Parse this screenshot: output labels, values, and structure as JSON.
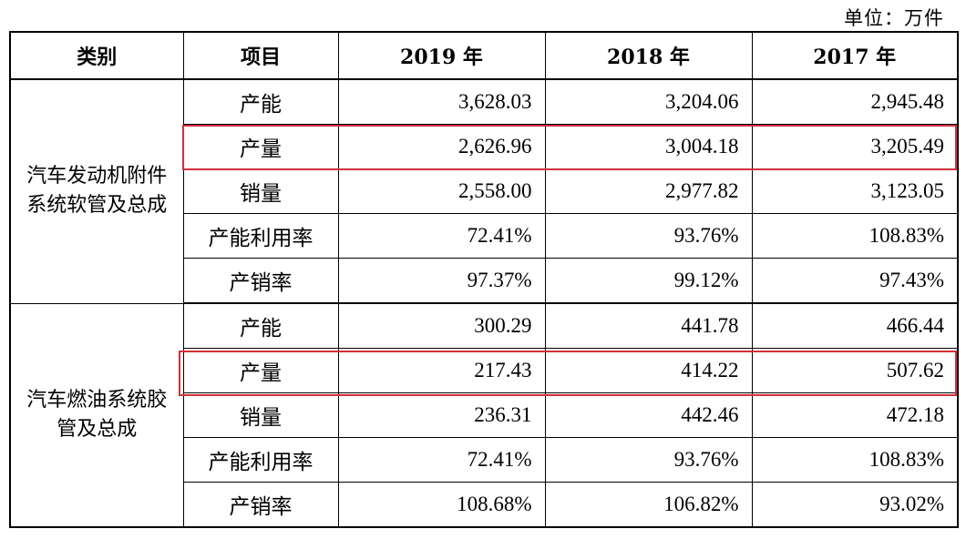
{
  "unit_label": "单位：万件",
  "headers": [
    "类别",
    "项目",
    "2019 年",
    "2018 年",
    "2017 年"
  ],
  "groups": [
    {
      "category": "汽车发动机附件系统软管及总成",
      "rows": [
        {
          "item": "产能",
          "v2019": "3,628.03",
          "v2018": "3,204.06",
          "v2017": "2,945.48"
        },
        {
          "item": "产量",
          "v2019": "2,626.96",
          "v2018": "3,004.18",
          "v2017": "3,205.49",
          "highlighted": true
        },
        {
          "item": "销量",
          "v2019": "2,558.00",
          "v2018": "2,977.82",
          "v2017": "3,123.05"
        },
        {
          "item": "产能利用率",
          "v2019": "72.41%",
          "v2018": "93.76%",
          "v2017": "108.83%"
        },
        {
          "item": "产销率",
          "v2019": "97.37%",
          "v2018": "99.12%",
          "v2017": "97.43%"
        }
      ]
    },
    {
      "category": "汽车燃油系统胶管及总成",
      "rows": [
        {
          "item": "产能",
          "v2019": "300.29",
          "v2018": "441.78",
          "v2017": "466.44"
        },
        {
          "item": "产量",
          "v2019": "217.43",
          "v2018": "414.22",
          "v2017": "507.62",
          "highlighted": true
        },
        {
          "item": "销量",
          "v2019": "236.31",
          "v2018": "442.46",
          "v2017": "472.18"
        },
        {
          "item": "产能利用率",
          "v2019": "72.41%",
          "v2018": "93.76%",
          "v2017": "108.83%"
        },
        {
          "item": "产销率",
          "v2019": "108.68%",
          "v2018": "106.82%",
          "v2017": "93.02%"
        }
      ]
    }
  ],
  "highlight_color": "#d3303a"
}
